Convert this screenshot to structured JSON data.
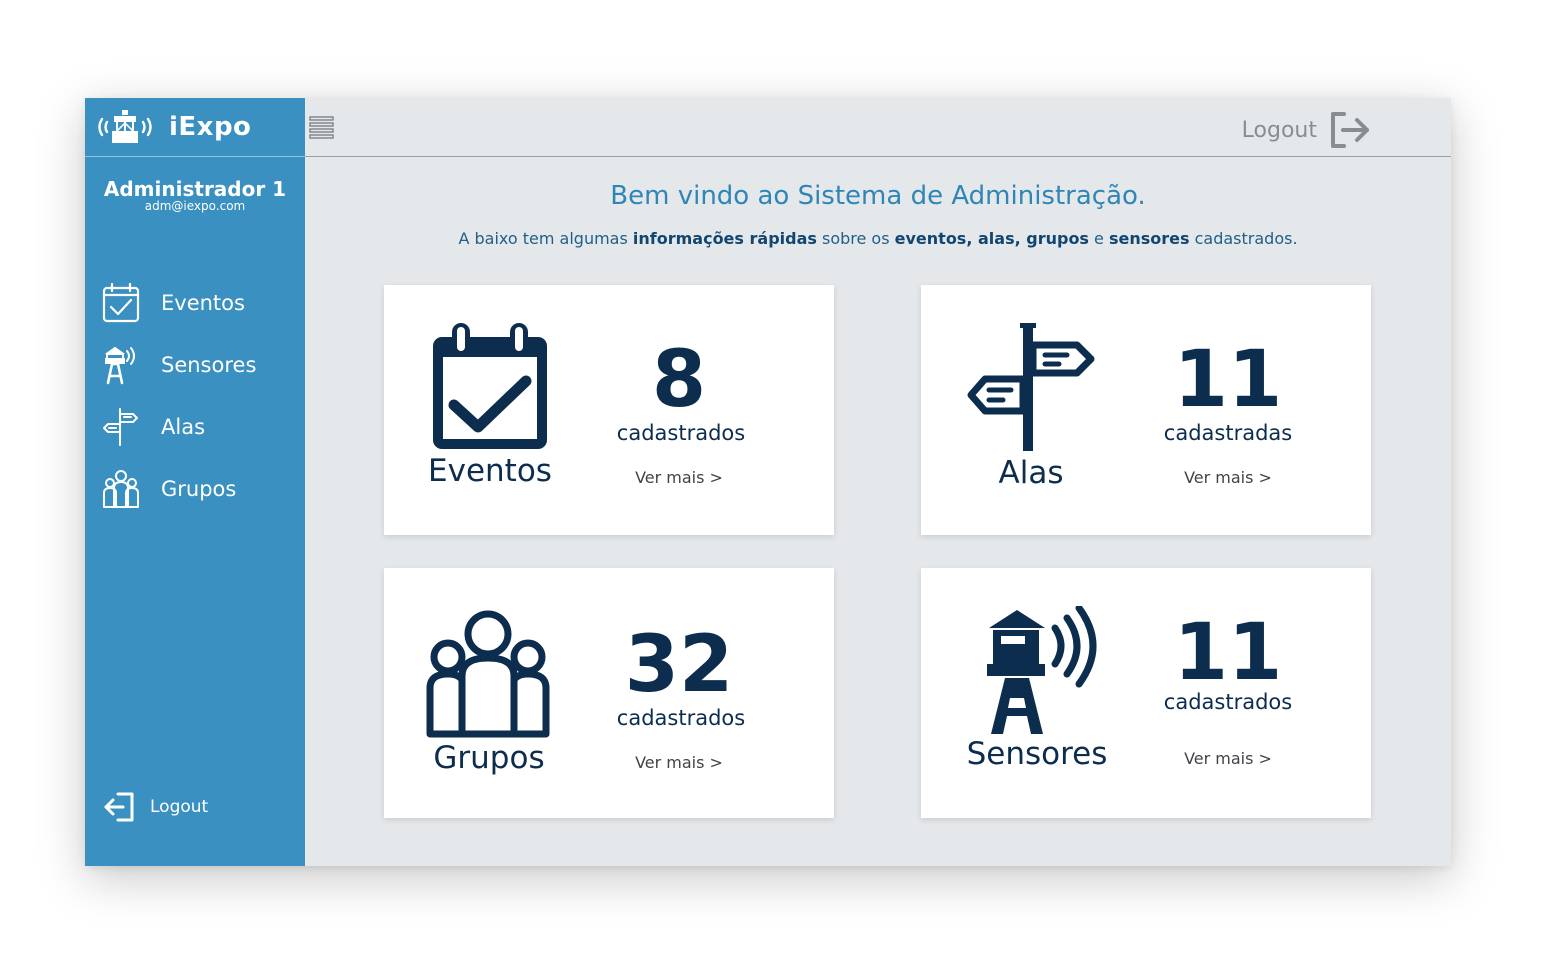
{
  "brand": {
    "name": "iExpo"
  },
  "user": {
    "name": "Administrador 1",
    "email": "adm@iexpo.com"
  },
  "sidebar": {
    "items": [
      {
        "label": "Eventos"
      },
      {
        "label": "Sensores"
      },
      {
        "label": "Alas"
      },
      {
        "label": "Grupos"
      }
    ],
    "logout_label": "Logout"
  },
  "topbar": {
    "logout_label": "Logout"
  },
  "main": {
    "welcome": "Bem vindo ao Sistema de Administração.",
    "subtitle_parts": [
      "A baixo tem algumas ",
      "informações rápidas",
      " sobre os ",
      "eventos",
      ", ",
      "alas",
      ", ",
      "grupos",
      " e ",
      "sensores",
      " cadastrados."
    ],
    "cards": [
      {
        "label": "Eventos",
        "count": "8",
        "sub": "cadastrados",
        "more": "Ver mais >"
      },
      {
        "label": "Alas",
        "count": "11",
        "sub": "cadastradas",
        "more": "Ver mais >"
      },
      {
        "label": "Grupos",
        "count": "32",
        "sub": "cadastrados",
        "more": "Ver mais >"
      },
      {
        "label": "Sensores",
        "count": "11",
        "sub": "cadastrados",
        "more": "Ver mais >"
      }
    ]
  },
  "colors": {
    "sidebar": "#3a90c0",
    "background": "#e5e8eb",
    "heading": "#2f86b6",
    "dark_navy": "#0d2d4e"
  },
  "icons": [
    "brand-tower-icon",
    "calendar-check-icon",
    "lighthouse-signal-icon",
    "signpost-icon",
    "people-group-icon",
    "logout-icon",
    "hamburger-icon"
  ]
}
